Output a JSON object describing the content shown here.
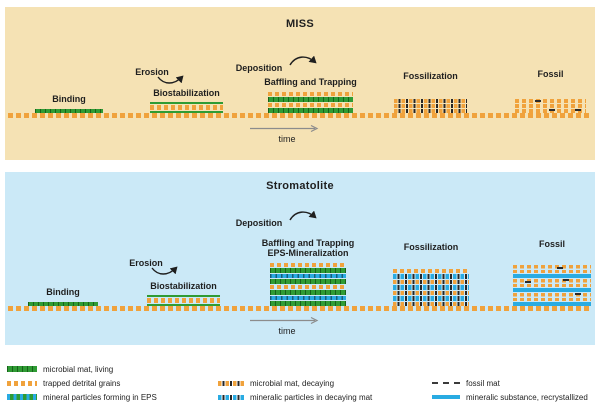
{
  "colors": {
    "panel-tan": "#F5E2B4",
    "panel-blue": "#CBE9F7",
    "green": "#2F9B34",
    "orange": "#F0A23C",
    "cyan": "#29ABE2",
    "dark": "#1F1F1F",
    "gray": "#8C8C8C"
  },
  "panels": [
    {
      "title": "MISS",
      "erosion_label": "Erosion",
      "deposition_label": "Deposition",
      "time_label": "time",
      "stages": [
        {
          "label": "Binding",
          "rows": [
            [
              "green",
              4
            ]
          ]
        },
        {
          "label": "Biostabilization",
          "rows": [
            [
              "green-thin",
              2
            ],
            [
              "orange-dots",
              5
            ],
            [
              "green-thin",
              2
            ]
          ]
        },
        {
          "label": "Baffling and Trapping",
          "rows": [
            [
              "orange-dots",
              4
            ],
            [
              "green",
              5
            ],
            [
              "orange-dots",
              4
            ],
            [
              "green",
              5
            ]
          ]
        },
        {
          "label": "Fossilization",
          "rows": [
            [
              "orange-black",
              4
            ],
            [
              "orange-black",
              4
            ],
            [
              "orange-black",
              4
            ]
          ]
        },
        {
          "label": "Fossil",
          "rows": [
            [
              "orange-dots",
              4
            ],
            [
              "orange-dots",
              4
            ],
            [
              "orange-dots",
              4
            ]
          ]
        }
      ]
    },
    {
      "title": "Stromatolite",
      "erosion_label": "Erosion",
      "deposition_label": "Deposition",
      "time_label": "time",
      "stages": [
        {
          "label": "Binding",
          "rows": [
            [
              "green",
              4
            ]
          ]
        },
        {
          "label": "Biostabilization",
          "rows": [
            [
              "green-thin",
              2
            ],
            [
              "orange-dots",
              5
            ],
            [
              "green-thin",
              2
            ]
          ]
        },
        {
          "label": "Baffling and Trapping",
          "label2": "EPS-Mineralization",
          "rows": [
            [
              "orange-dots",
              4
            ],
            [
              "green",
              5
            ],
            [
              "cyan-mineral",
              4
            ],
            [
              "green",
              5
            ],
            [
              "orange-dots",
              4
            ],
            [
              "green",
              5
            ],
            [
              "cyan-mineral",
              4
            ],
            [
              "green",
              5
            ]
          ]
        },
        {
          "label": "Fossilization",
          "rows": [
            [
              "orange-dots",
              4
            ],
            [
              "cyan-black",
              4.5
            ],
            [
              "orange-black",
              4.5
            ],
            [
              "cyan-black",
              4.5
            ],
            [
              "orange-black",
              4.5
            ],
            [
              "cyan-black",
              4.5
            ],
            [
              "orange-black",
              4.5
            ]
          ]
        },
        {
          "label": "Fossil",
          "rows": [
            [
              "orange-double",
              8
            ],
            [
              "cyan-solid",
              4
            ],
            [
              "orange-double",
              8
            ],
            [
              "cyan-solid",
              4
            ],
            [
              "orange-double",
              8
            ],
            [
              "cyan-solid",
              4
            ]
          ]
        }
      ]
    }
  ],
  "legend": {
    "col1": [
      {
        "label": "microbial mat, living",
        "pattern": "green"
      },
      {
        "label": "trapped detrital grains",
        "pattern": "orange-dots"
      },
      {
        "label": "mineral particles forming in EPS",
        "pattern": "green-cyan"
      }
    ],
    "col2": [
      {
        "label": "microbial mat, decaying",
        "pattern": "orange-black"
      },
      {
        "label": "mineralic particles in decaying mat",
        "pattern": "cyan-black"
      }
    ],
    "col3": [
      {
        "label": "fossil mat",
        "pattern": "fossil-dash"
      },
      {
        "label": "mineralic substance, recrystallized",
        "pattern": "cyan-solid"
      }
    ]
  }
}
